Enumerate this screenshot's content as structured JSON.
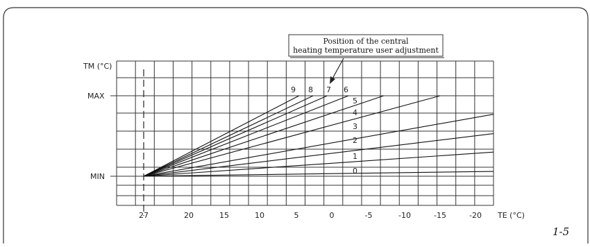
{
  "diagram": {
    "y_axis_label": "TM (°C)",
    "x_axis_label": "TE (°C)",
    "y_markers": [
      {
        "id": "max",
        "label": "MAX"
      },
      {
        "id": "min",
        "label": "MIN"
      }
    ],
    "x_ticks": [
      "27",
      "20",
      "15",
      "10",
      "5",
      "0",
      "-5",
      "-10",
      "-15",
      "-20"
    ],
    "callout": [
      "Position of the central",
      "heating temperature user adjustment"
    ],
    "figure_number": "1-5"
  },
  "chart_data": {
    "type": "line",
    "title": "",
    "xlabel": "TE (°C)",
    "ylabel": "TM (°C)",
    "x_tick_labels": [
      "27",
      "20",
      "15",
      "10",
      "5",
      "0",
      "-5",
      "-10",
      "-15",
      "-20"
    ],
    "xlim": [
      27,
      -20
    ],
    "y_reference_lines": [
      "MIN",
      "MAX"
    ],
    "origin": {
      "TE": 27,
      "TM": "MIN"
    },
    "grid": true,
    "legend": "none",
    "series": [
      {
        "name": "0",
        "end_TE": -25,
        "TM_fraction_at_end": 0.06
      },
      {
        "name": "1",
        "end_TE": -25,
        "TM_fraction_at_end": 0.3
      },
      {
        "name": "2",
        "end_TE": -25,
        "TM_fraction_at_end": 0.53
      },
      {
        "name": "3",
        "end_TE": -25,
        "TM_fraction_at_end": 0.77
      },
      {
        "name": "4",
        "end_TE": -15,
        "TM_fraction_at_end": 1.0
      },
      {
        "name": "5",
        "end_TE": -7,
        "TM_fraction_at_end": 1.0
      },
      {
        "name": "6",
        "end_TE": -2,
        "TM_fraction_at_end": 1.0
      },
      {
        "name": "7",
        "end_TE": 1,
        "TM_fraction_at_end": 1.0
      },
      {
        "name": "8",
        "end_TE": 3,
        "TM_fraction_at_end": 1.0
      },
      {
        "name": "9",
        "end_TE": 5,
        "TM_fraction_at_end": 1.0
      }
    ]
  }
}
